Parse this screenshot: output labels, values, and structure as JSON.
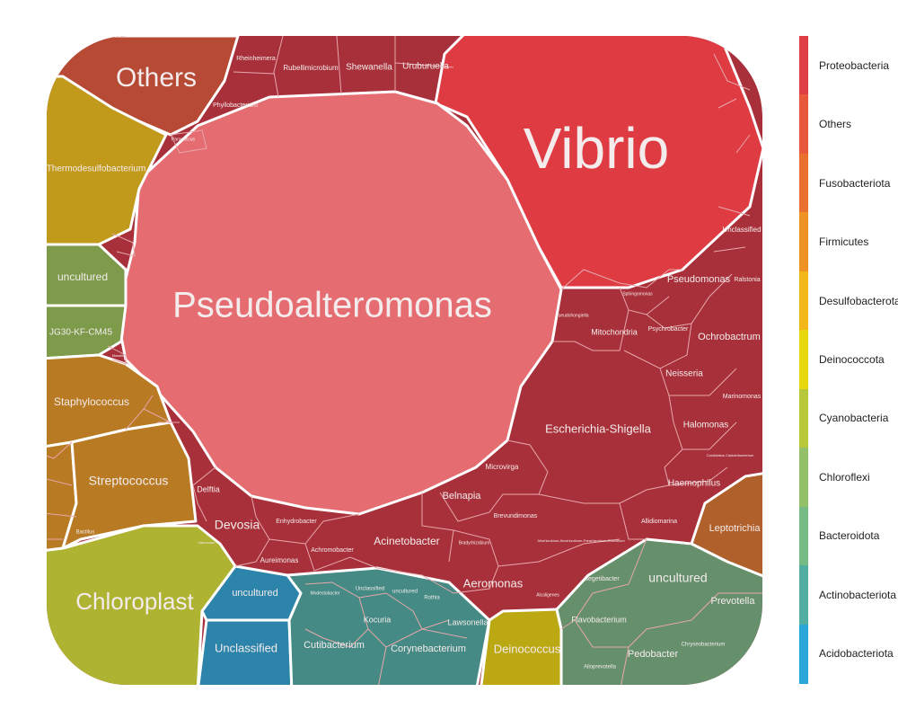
{
  "diagram": {
    "type": "voronoi-treemap",
    "phyla": [
      {
        "name": "Proteobacteria",
        "color": "#e03e45"
      },
      {
        "name": "Others",
        "color": "#e8583a"
      },
      {
        "name": "Fusobacteriota",
        "color": "#ea7030"
      },
      {
        "name": "Firmicutes",
        "color": "#ef9224"
      },
      {
        "name": "Desulfobacterota",
        "color": "#f2b81a"
      },
      {
        "name": "Deinococcota",
        "color": "#e8d70c"
      },
      {
        "name": "Cyanobacteria",
        "color": "#b7c93a"
      },
      {
        "name": "Chloroflexi",
        "color": "#94c06a"
      },
      {
        "name": "Bacteroidota",
        "color": "#76ba86"
      },
      {
        "name": "Actinobacteriota",
        "color": "#52aea0"
      },
      {
        "name": "Acidobacteriota",
        "color": "#2aa6d8"
      }
    ],
    "genera": {
      "vibrio": "Vibrio",
      "pseudoalteromonas": "Pseudoalteromonas",
      "others": "Others",
      "thermodesulfobacterium": "Thermodesulfobacterium",
      "uncultured_chloroflexi": "uncultured",
      "jg30": "JG30-KF-CM45",
      "staphylococcus": "Staphylococcus",
      "streptococcus": "Streptococcus",
      "bacillus": "Bacillus",
      "chloroplast": "Chloroplast",
      "uncultured_acido": "uncultured",
      "unclassified_acido": "Unclassified",
      "cutibacterium": "Cutibacterium",
      "corynebacterium": "Corynebacterium",
      "kocuria": "Kocuria",
      "lawsonella": "Lawsonella",
      "rothia": "Rothia",
      "uncultured_actino": "uncultured",
      "unclassified_actino": "Unclassified",
      "modestobacter": "Modestobacter",
      "deinococcus": "Deinococcus",
      "leptotrichia": "Leptotrichia",
      "uncultured_bact": "uncultured",
      "prevotella": "Prevotella",
      "flavobacterium": "Flavobacterium",
      "pedobacter": "Pedobacter",
      "chryseobacterium": "Chryseobacterium",
      "segetibacter": "Segetibacter",
      "alloprevotella": "Alloprevotella",
      "rheinheimera": "Rheinheimera",
      "rubellimicrobium": "Rubellimicrobium",
      "shewanella": "Shewanella",
      "uruburuella": "Uruburuella",
      "phyllobacterium": "Phyllobacterium",
      "paracoccus": "Paracoccus",
      "unclassified_proteo": "Unclassified",
      "pseudomonas": "Pseudomonas",
      "ralstonia": "Ralstonia",
      "sphingomonas": "Sphingomonas",
      "pseudohongiella": "Pseudohongiella",
      "mitochondria": "Mitochondria",
      "psychrobacter": "Psychrobacter",
      "ochrobactrum": "Ochrobactrum",
      "neisseria": "Neisseria",
      "marinomonas": "Marinomonas",
      "escherichia": "Escherichia-Shigella",
      "halomonas": "Halomonas",
      "haemophilus": "Haemophilus",
      "candidatus": "Candidatus Caldatribacterium",
      "microvirga": "Microvirga",
      "belnapia": "Belnapia",
      "brevundimonas": "Brevundimonas",
      "bradyrhizobium": "Bradyrhizobium",
      "allorhizobium": "Allorhizobium-Neorhizobium-Pararhizobium-Rhizobium",
      "allidiomarina": "Allidiomarina",
      "acinetobacter": "Acinetobacter",
      "aeromonas": "Aeromonas",
      "alcaligenes": "Alcaligenes",
      "delftia": "Delftia",
      "devosia": "Devosia",
      "enhydrobacter": "Enhydrobacter",
      "achromobacter": "Achromobacter",
      "aureimonas": "Aureimonas",
      "massilia": "Massilia",
      "variovorax": "Variovorax"
    }
  }
}
